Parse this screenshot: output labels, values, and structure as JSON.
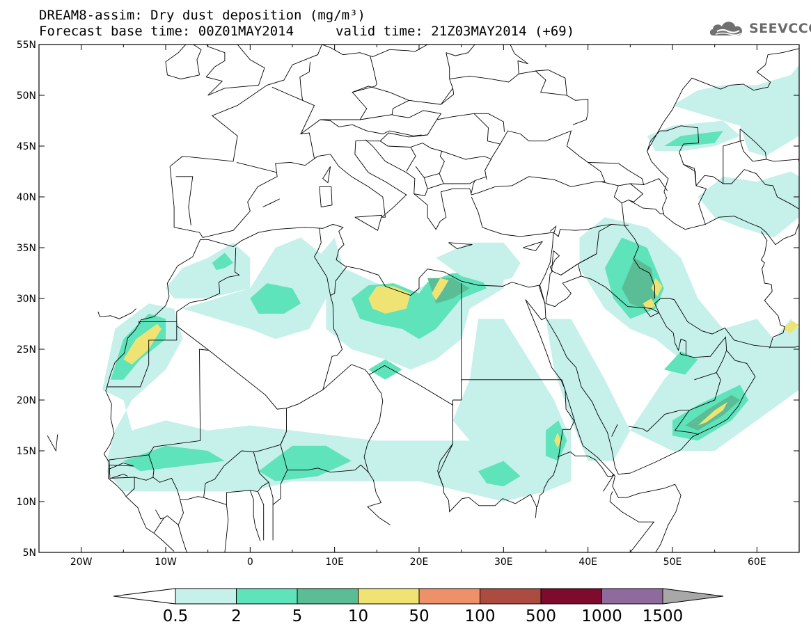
{
  "title": {
    "line1": "DREAM8-assim: Dry dust deposition (mg/m³)",
    "line2_left": "Forecast base time: 00Z01MAY2014",
    "line2_right": "valid time: 21Z03MAY2014 (+69)"
  },
  "logo": {
    "text": "SEEVCCC",
    "icon": "cloud-logo-icon",
    "color": "#707070"
  },
  "map": {
    "lon_range": [
      -25,
      65
    ],
    "lat_range": [
      5,
      55
    ],
    "lon_ticks": [
      {
        "value": -20,
        "label": "20W"
      },
      {
        "value": -10,
        "label": "10W"
      },
      {
        "value": 0,
        "label": "0"
      },
      {
        "value": 10,
        "label": "10E"
      },
      {
        "value": 20,
        "label": "20E"
      },
      {
        "value": 30,
        "label": "30E"
      },
      {
        "value": 40,
        "label": "40E"
      },
      {
        "value": 50,
        "label": "50E"
      },
      {
        "value": 60,
        "label": "60E"
      }
    ],
    "lat_ticks": [
      {
        "value": 5,
        "label": "5N"
      },
      {
        "value": 10,
        "label": "10N"
      },
      {
        "value": 15,
        "label": "15N"
      },
      {
        "value": 20,
        "label": "20N"
      },
      {
        "value": 25,
        "label": "25N"
      },
      {
        "value": 30,
        "label": "30N"
      },
      {
        "value": 35,
        "label": "35N"
      },
      {
        "value": 40,
        "label": "40N"
      },
      {
        "value": 45,
        "label": "45N"
      },
      {
        "value": 50,
        "label": "50N"
      },
      {
        "value": 55,
        "label": "55N"
      }
    ]
  },
  "levels": [
    {
      "threshold": 0.5,
      "color": "#c6f0ea"
    },
    {
      "threshold": 2,
      "color": "#5fe3bb"
    },
    {
      "threshold": 5,
      "color": "#5bbd96"
    },
    {
      "threshold": 10,
      "color": "#efe473"
    },
    {
      "threshold": 50,
      "color": "#ee9068"
    },
    {
      "threshold": 100,
      "color": "#ac4b40"
    },
    {
      "threshold": 500,
      "color": "#7e0a2e"
    },
    {
      "threshold": 1000,
      "color": "#8f6a9d"
    },
    {
      "threshold": 1500,
      "color": "#a8a8a8"
    }
  ],
  "legend": {
    "labels": [
      "0.5",
      "2",
      "5",
      "10",
      "50",
      "100",
      "500",
      "1000",
      "1500"
    ]
  },
  "dust_regions": [
    {
      "name": "w-sahara-coast",
      "level": 0,
      "points": [
        [
          -17.5,
          21
        ],
        [
          -16,
          27
        ],
        [
          -12,
          29.5
        ],
        [
          -9,
          29
        ],
        [
          -8,
          26
        ],
        [
          -10,
          23
        ],
        [
          -14,
          20
        ],
        [
          -16,
          17
        ],
        [
          -17,
          14
        ],
        [
          -16,
          12
        ],
        [
          -14,
          12
        ],
        [
          -14,
          17
        ],
        [
          -15,
          20
        ]
      ]
    },
    {
      "name": "w-sahara-coast-mid",
      "level": 1,
      "points": [
        [
          -16.5,
          22
        ],
        [
          -15,
          26
        ],
        [
          -12,
          28.5
        ],
        [
          -10,
          28
        ],
        [
          -10,
          26
        ],
        [
          -13,
          24
        ],
        [
          -15,
          22
        ]
      ]
    },
    {
      "name": "w-sahara-coast-high",
      "level": 3,
      "points": [
        [
          -15,
          24
        ],
        [
          -13.5,
          26
        ],
        [
          -11,
          27.5
        ],
        [
          -10.5,
          27
        ],
        [
          -12,
          25
        ],
        [
          -14,
          23.5
        ]
      ]
    },
    {
      "name": "atlas",
      "level": 0,
      "points": [
        [
          -5,
          34
        ],
        [
          -2,
          35.5
        ],
        [
          0,
          34
        ],
        [
          0,
          31
        ],
        [
          -5,
          30
        ],
        [
          -9,
          30
        ],
        [
          -10,
          31
        ],
        [
          -8,
          33
        ]
      ]
    },
    {
      "name": "atlas-mid",
      "level": 1,
      "points": [
        [
          -4.5,
          33.5
        ],
        [
          -3,
          34.5
        ],
        [
          -2,
          33.5
        ],
        [
          -3,
          33
        ],
        [
          -4,
          32.8
        ]
      ]
    },
    {
      "name": "algeria-n",
      "level": 0,
      "points": [
        [
          0,
          31
        ],
        [
          3,
          35
        ],
        [
          6,
          36
        ],
        [
          9,
          34
        ],
        [
          9,
          30
        ],
        [
          7,
          27
        ],
        [
          3,
          26
        ],
        [
          0,
          27
        ],
        [
          -4,
          28
        ],
        [
          -8,
          29
        ]
      ]
    },
    {
      "name": "algeria-mid",
      "level": 1,
      "points": [
        [
          0,
          30
        ],
        [
          2,
          31.5
        ],
        [
          5,
          31
        ],
        [
          6,
          29.5
        ],
        [
          4,
          28.5
        ],
        [
          1,
          28.5
        ]
      ]
    },
    {
      "name": "libya-tunisia",
      "level": 0,
      "points": [
        [
          8,
          34
        ],
        [
          10,
          36
        ],
        [
          11,
          33
        ],
        [
          15,
          31.5
        ],
        [
          19,
          30.5
        ],
        [
          21,
          31.5
        ],
        [
          25,
          32.5
        ],
        [
          28,
          33.5
        ],
        [
          30,
          34
        ],
        [
          30,
          31
        ],
        [
          26,
          29
        ],
        [
          25,
          26
        ],
        [
          22,
          24
        ],
        [
          19,
          23
        ],
        [
          16,
          24
        ],
        [
          12,
          25
        ],
        [
          9,
          27
        ],
        [
          9,
          31
        ]
      ]
    },
    {
      "name": "libya-mid",
      "level": 1,
      "points": [
        [
          12,
          30
        ],
        [
          14,
          31.3
        ],
        [
          17,
          31.5
        ],
        [
          20,
          30.5
        ],
        [
          21,
          31.6
        ],
        [
          24,
          32.5
        ],
        [
          27,
          32.5
        ],
        [
          28,
          31
        ],
        [
          25,
          30
        ],
        [
          22,
          27
        ],
        [
          20,
          26
        ],
        [
          18,
          27
        ],
        [
          15,
          27.5
        ],
        [
          13,
          28
        ]
      ]
    },
    {
      "name": "libya-dark",
      "level": 2,
      "points": [
        [
          21,
          32
        ],
        [
          24,
          32
        ],
        [
          26,
          31
        ],
        [
          24,
          30
        ],
        [
          22,
          29.5
        ]
      ]
    },
    {
      "name": "libya-high",
      "level": 3,
      "points": [
        [
          14,
          30
        ],
        [
          15,
          31.2
        ],
        [
          17,
          31.2
        ],
        [
          19,
          30.5
        ],
        [
          18.5,
          29
        ],
        [
          16,
          28.5
        ],
        [
          14.5,
          29
        ]
      ]
    },
    {
      "name": "cyrenaica-high",
      "level": 3,
      "points": [
        [
          21.5,
          30.5
        ],
        [
          22.5,
          32
        ],
        [
          23.5,
          31.8
        ],
        [
          22.8,
          30.8
        ],
        [
          22,
          29.8
        ]
      ]
    },
    {
      "name": "e-mediterranean",
      "level": 0,
      "points": [
        [
          22,
          34
        ],
        [
          26,
          35.5
        ],
        [
          30,
          35.5
        ],
        [
          32,
          33.5
        ],
        [
          31,
          32
        ],
        [
          28,
          31.5
        ],
        [
          25,
          32.2
        ]
      ]
    },
    {
      "name": "egypt-sudan",
      "level": 0,
      "points": [
        [
          27,
          28
        ],
        [
          30,
          28
        ],
        [
          33,
          24
        ],
        [
          36,
          20
        ],
        [
          38,
          16
        ],
        [
          37,
          12
        ],
        [
          34,
          11
        ],
        [
          30,
          12
        ],
        [
          26,
          16
        ],
        [
          24,
          18
        ],
        [
          26,
          22
        ]
      ]
    },
    {
      "name": "sahel-belt",
      "level": 0,
      "points": [
        [
          -14,
          17
        ],
        [
          -10,
          18
        ],
        [
          -5,
          17
        ],
        [
          0,
          17.5
        ],
        [
          5,
          17
        ],
        [
          10,
          16.5
        ],
        [
          15,
          16
        ],
        [
          20,
          16
        ],
        [
          25,
          16
        ],
        [
          30,
          16
        ],
        [
          34,
          16
        ],
        [
          36,
          18
        ],
        [
          38,
          17
        ],
        [
          38,
          12
        ],
        [
          35,
          11
        ],
        [
          30,
          10
        ],
        [
          25,
          11
        ],
        [
          20,
          12
        ],
        [
          15,
          12
        ],
        [
          10,
          12
        ],
        [
          5,
          12
        ],
        [
          0,
          11
        ],
        [
          -5,
          11
        ],
        [
          -10,
          11
        ],
        [
          -15,
          11
        ],
        [
          -17,
          13
        ]
      ]
    },
    {
      "name": "sahel-mid-w",
      "level": 1,
      "points": [
        [
          -15,
          14
        ],
        [
          -10,
          15.5
        ],
        [
          -5,
          15
        ],
        [
          -3,
          14
        ],
        [
          -8,
          13.5
        ],
        [
          -13,
          13
        ]
      ]
    },
    {
      "name": "sahel-mid-c",
      "level": 1,
      "points": [
        [
          1,
          13
        ],
        [
          5,
          15.5
        ],
        [
          9,
          15.5
        ],
        [
          12,
          14
        ],
        [
          8,
          12.5
        ],
        [
          3,
          12
        ]
      ]
    },
    {
      "name": "sahel-mid-e",
      "level": 1,
      "points": [
        [
          27,
          13
        ],
        [
          30,
          14
        ],
        [
          32,
          12.5
        ],
        [
          30,
          11.5
        ],
        [
          28,
          11.8
        ]
      ]
    },
    {
      "name": "ethiopia-mid",
      "level": 1,
      "points": [
        [
          35,
          17
        ],
        [
          36.5,
          18
        ],
        [
          37.5,
          16
        ],
        [
          36.5,
          14
        ],
        [
          35,
          14.5
        ]
      ]
    },
    {
      "name": "ethiopia-high",
      "level": 3,
      "points": [
        [
          36,
          16
        ],
        [
          36.4,
          16.8
        ],
        [
          36.8,
          16
        ],
        [
          36.4,
          15.3
        ]
      ]
    },
    {
      "name": "nubia",
      "level": 1,
      "points": [
        [
          14,
          23
        ],
        [
          16,
          24
        ],
        [
          18,
          23
        ],
        [
          16,
          22
        ]
      ]
    },
    {
      "name": "arabia-w",
      "level": 0,
      "points": [
        [
          35,
          28
        ],
        [
          38,
          28
        ],
        [
          42,
          22
        ],
        [
          45,
          17
        ],
        [
          43,
          14
        ],
        [
          40,
          14
        ],
        [
          38,
          18
        ],
        [
          36,
          23
        ]
      ]
    },
    {
      "name": "mesopotamia",
      "level": 0,
      "points": [
        [
          39,
          36
        ],
        [
          42,
          38
        ],
        [
          47,
          37
        ],
        [
          51,
          34
        ],
        [
          53,
          30
        ],
        [
          56,
          27
        ],
        [
          60,
          28
        ],
        [
          62,
          26
        ],
        [
          64,
          28
        ],
        [
          65,
          27
        ],
        [
          65,
          21
        ],
        [
          60,
          18
        ],
        [
          55,
          15
        ],
        [
          50,
          15
        ],
        [
          45,
          17
        ],
        [
          49,
          22
        ],
        [
          51,
          24
        ],
        [
          48,
          26
        ],
        [
          45,
          27
        ],
        [
          42,
          29
        ],
        [
          39,
          33
        ]
      ]
    },
    {
      "name": "iraq-mid",
      "level": 1,
      "points": [
        [
          42,
          33
        ],
        [
          44,
          36
        ],
        [
          47,
          35
        ],
        [
          49,
          31
        ],
        [
          48,
          29
        ],
        [
          45,
          28
        ],
        [
          43,
          30
        ]
      ]
    },
    {
      "name": "iraq-dark",
      "level": 2,
      "points": [
        [
          44,
          31
        ],
        [
          45.5,
          34
        ],
        [
          47.5,
          33
        ],
        [
          48,
          30
        ],
        [
          46.5,
          29
        ],
        [
          45,
          29.5
        ]
      ]
    },
    {
      "name": "iraq-high",
      "level": 3,
      "points": [
        [
          47.5,
          31
        ],
        [
          48,
          32
        ],
        [
          48.8,
          31.2
        ],
        [
          48.2,
          30.2
        ]
      ]
    },
    {
      "name": "kuwait-high",
      "level": 3,
      "points": [
        [
          46.5,
          29.5
        ],
        [
          47.5,
          30
        ],
        [
          48,
          29.3
        ],
        [
          47,
          28.9
        ]
      ]
    },
    {
      "name": "oman-mid",
      "level": 1,
      "points": [
        [
          50,
          18
        ],
        [
          53,
          19.5
        ],
        [
          58,
          21.5
        ],
        [
          59,
          20
        ],
        [
          57,
          18
        ],
        [
          53,
          16
        ],
        [
          50,
          16.5
        ]
      ]
    },
    {
      "name": "oman-dark",
      "level": 2,
      "points": [
        [
          51.5,
          17.5
        ],
        [
          54,
          19
        ],
        [
          57,
          20.5
        ],
        [
          58,
          20
        ],
        [
          56,
          18.5
        ],
        [
          53,
          17
        ]
      ]
    },
    {
      "name": "oman-high",
      "level": 3,
      "points": [
        [
          53,
          17.5
        ],
        [
          55,
          19
        ],
        [
          56.5,
          19.8
        ],
        [
          56,
          19
        ],
        [
          54,
          17.8
        ]
      ]
    },
    {
      "name": "rub-al-khali-mid",
      "level": 1,
      "points": [
        [
          49,
          23
        ],
        [
          51,
          24.8
        ],
        [
          53,
          24
        ],
        [
          51.5,
          22.5
        ]
      ]
    },
    {
      "name": "iran-e-high",
      "level": 3,
      "points": [
        [
          63,
          27
        ],
        [
          64.2,
          27.8
        ],
        [
          65,
          27.4
        ],
        [
          64,
          26.6
        ]
      ]
    },
    {
      "name": "caspian-n",
      "level": 0,
      "points": [
        [
          47,
          46
        ],
        [
          50,
          47
        ],
        [
          56,
          47.5
        ],
        [
          58,
          46
        ],
        [
          55,
          45
        ],
        [
          51,
          44.5
        ],
        [
          48,
          44.5
        ]
      ]
    },
    {
      "name": "caspian-n-mid",
      "level": 1,
      "points": [
        [
          49,
          45
        ],
        [
          51,
          46
        ],
        [
          56,
          46.5
        ],
        [
          55,
          45.3
        ],
        [
          51.5,
          45
        ]
      ]
    },
    {
      "name": "kazakh",
      "level": 0,
      "points": [
        [
          50,
          49
        ],
        [
          53,
          50.5
        ],
        [
          56,
          51
        ],
        [
          60,
          51
        ],
        [
          64,
          52
        ],
        [
          65,
          53
        ],
        [
          65,
          46
        ],
        [
          61,
          44
        ],
        [
          59,
          44.5
        ],
        [
          58,
          47
        ],
        [
          54,
          48
        ]
      ]
    },
    {
      "name": "caspian-s",
      "level": 0,
      "points": [
        [
          53,
          40
        ],
        [
          56,
          42
        ],
        [
          60,
          41.5
        ],
        [
          64,
          42.5
        ],
        [
          65,
          42
        ],
        [
          65,
          38
        ],
        [
          62,
          36
        ],
        [
          58,
          37
        ],
        [
          55,
          38
        ]
      ]
    }
  ]
}
